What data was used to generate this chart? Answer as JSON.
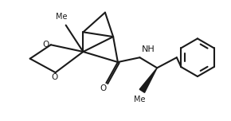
{
  "bg_color": "#ffffff",
  "line_color": "#1a1a1a",
  "line_width": 1.5,
  "fig_width": 2.9,
  "fig_height": 1.52,
  "dpi": 100,
  "xlim": [
    0,
    10
  ],
  "ylim": [
    0,
    5.24
  ]
}
